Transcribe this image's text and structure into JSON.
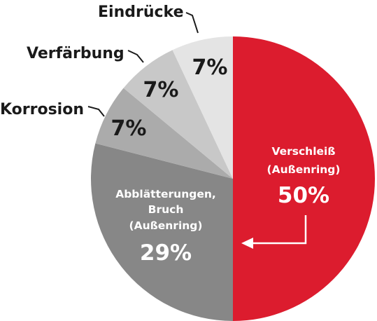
{
  "chart_data": {
    "type": "pie",
    "start_angle_deg": 0,
    "direction": "clockwise",
    "slices": [
      {
        "label_lines": [
          "Verschleiß",
          "(Außenring)"
        ],
        "value_label": "50%",
        "value": 50,
        "color": "#dc1c2e",
        "label_placement": "inside"
      },
      {
        "label_lines": [
          "Abblätterungen,",
          "Bruch",
          "(Außenring)"
        ],
        "value_label": "29%",
        "value": 29,
        "color": "#878787",
        "label_placement": "inside"
      },
      {
        "label_lines": [
          "Korrosion"
        ],
        "value_label": "7%",
        "value": 7,
        "color": "#ababab",
        "label_placement": "outside"
      },
      {
        "label_lines": [
          "Verfärbung"
        ],
        "value_label": "7%",
        "value": 7,
        "color": "#c8c8c8",
        "label_placement": "outside"
      },
      {
        "label_lines": [
          "Eindrücke"
        ],
        "value_label": "7%",
        "value": 7,
        "color": "#e4e4e4",
        "label_placement": "outside"
      }
    ]
  }
}
